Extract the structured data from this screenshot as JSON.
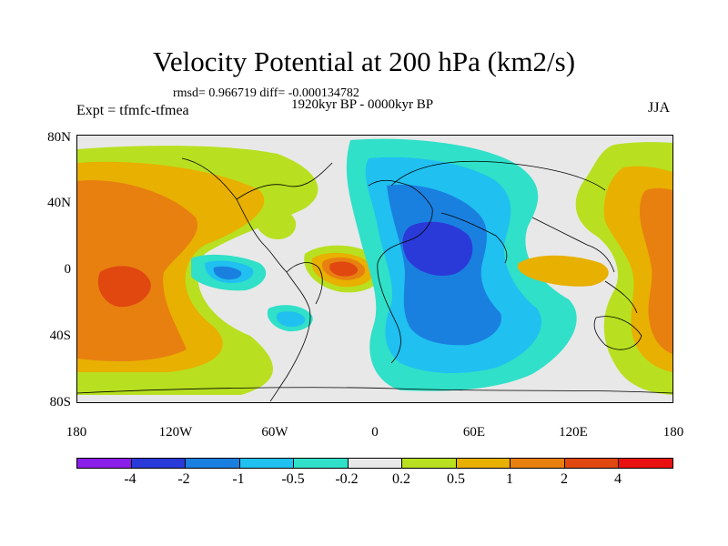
{
  "title": "Velocity Potential at 200 hPa (km2/s)",
  "stats": "rmsd= 0.966719 diff= -0.000134782",
  "period": "1920kyr BP - 0000kyr BP",
  "expt": "Expt = tfmfc-tfmea",
  "season": "JJA",
  "lat_labels": [
    "80N",
    "40N",
    "0",
    "40S",
    "80S"
  ],
  "lon_labels": [
    "180",
    "120W",
    "60W",
    "0",
    "60E",
    "120E",
    "180"
  ],
  "legend": {
    "colors": [
      "#8a1ee8",
      "#2a3ad8",
      "#1a80e0",
      "#20c0f0",
      "#30e0c8",
      "#e8e8e8",
      "#b8e020",
      "#e8b000",
      "#e88010",
      "#e04810",
      "#e81010"
    ],
    "labels": [
      "-4",
      "-2",
      "-1",
      "-0.5",
      "-0.2",
      "0.2",
      "0.5",
      "1",
      "2",
      "4"
    ]
  }
}
